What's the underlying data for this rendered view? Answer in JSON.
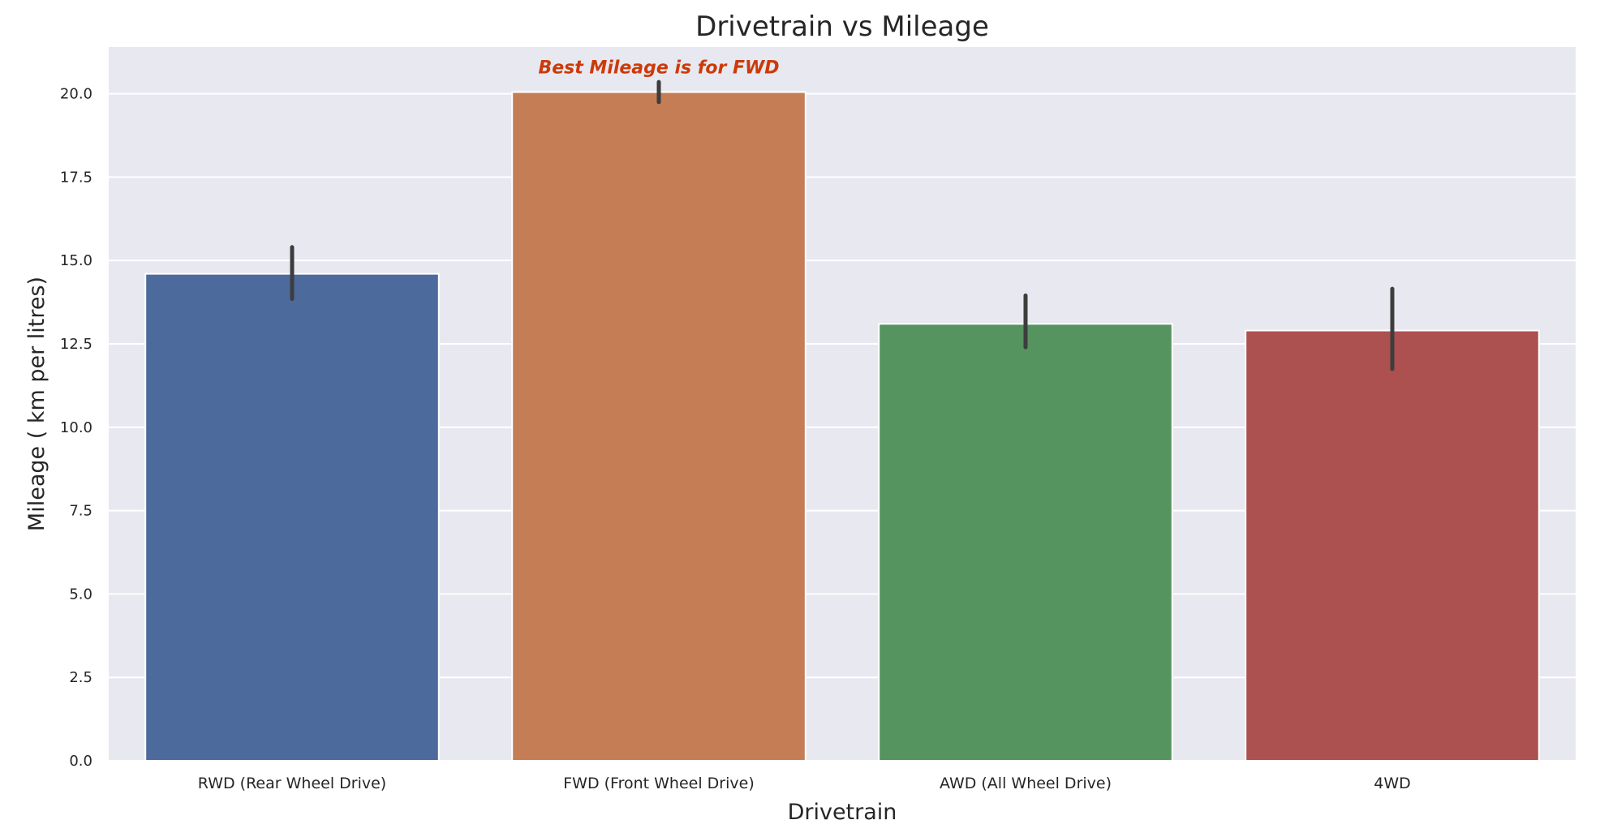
{
  "chart_data": {
    "type": "bar",
    "title": "Drivetrain vs Mileage",
    "xlabel": "Drivetrain",
    "ylabel": "Mileage ( km per litres)",
    "categories": [
      "RWD (Rear Wheel Drive)",
      "FWD (Front Wheel Drive)",
      "AWD (All Wheel Drive)",
      "4WD"
    ],
    "values": [
      14.6,
      20.05,
      13.1,
      12.9
    ],
    "error_low": [
      13.85,
      19.75,
      12.4,
      11.75
    ],
    "error_high": [
      15.4,
      20.35,
      13.95,
      14.15
    ],
    "colors": [
      "#4c6a9b",
      "#c47d55",
      "#55945f",
      "#ad5050"
    ],
    "ylim": [
      0,
      21.4
    ],
    "yticks": [
      "0.0",
      "2.5",
      "5.0",
      "7.5",
      "10.0",
      "12.5",
      "15.0",
      "17.5",
      "20.0"
    ],
    "ytick_values": [
      0,
      2.5,
      5,
      7.5,
      10,
      12.5,
      15,
      17.5,
      20
    ],
    "grid": true,
    "annotation": {
      "text": "Best  Mileage is for FWD",
      "x_category": "FWD (Front Wheel Drive)",
      "y": 20.8,
      "color": "#cc3a08"
    },
    "background_color": "#e8e8f0",
    "grid_color": "#ffffff",
    "errorbar_color": "#3d3d3d"
  }
}
